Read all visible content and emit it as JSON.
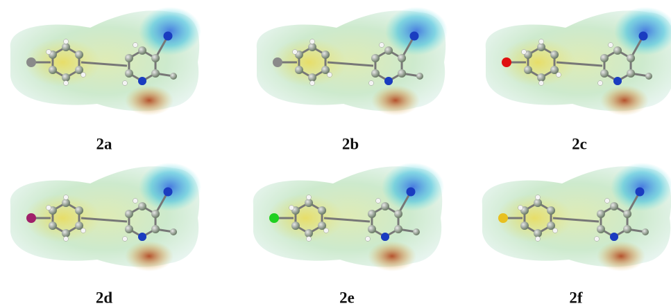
{
  "panels": [
    {
      "label": "2a"
    },
    {
      "label": "2b"
    },
    {
      "label": "2c"
    },
    {
      "label": "2d"
    },
    {
      "label": "2e"
    },
    {
      "label": "2f"
    }
  ]
}
